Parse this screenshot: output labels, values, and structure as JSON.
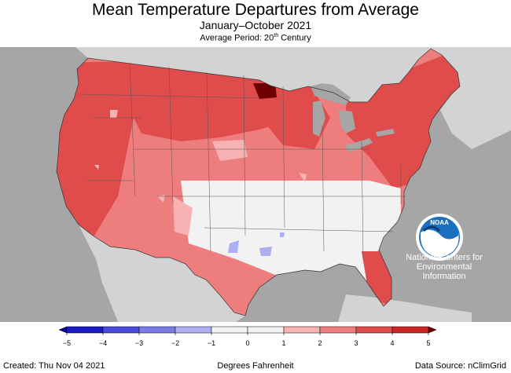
{
  "title": "Mean Temperature Departures from Average",
  "subtitle": "January–October 2021",
  "period": {
    "prefix": "Average Period: 20",
    "sup": "th",
    "suffix": " Century"
  },
  "organization": {
    "logo_text": "NOAA",
    "line1": "National Centers for",
    "line2": "Environmental",
    "line3": "Information"
  },
  "legend": {
    "ticks": [
      "−5",
      "−4",
      "−3",
      "−2",
      "−1",
      "0",
      "1",
      "2",
      "3",
      "4",
      "5"
    ],
    "colors": [
      "#1b1bc4",
      "#4a4ad8",
      "#7b7be6",
      "#aeaef2",
      "#f2f2f2",
      "#f2f2f2",
      "#f7b3b3",
      "#ee7e7e",
      "#e04c4c",
      "#c82626"
    ],
    "low_arrow_color": "#0a0aa0",
    "high_arrow_color": "#6e0000"
  },
  "units": "Degrees Fahrenheit",
  "created": "Created: Thu Nov 04 2021",
  "source": "Data Source: nClimGrid",
  "colors": {
    "background": "#a6a6a6",
    "land_outside": "#d3d3d3",
    "lakes": "#a6a6a6",
    "near_zero": "#f2f2f2",
    "plus1_2": "#f7b3b3",
    "plus2_3": "#ee7e7e",
    "plus3_4": "#e04c4c",
    "plus4_5": "#c82626",
    "above_5": "#6e0000",
    "minus1_2": "#aeaef2"
  }
}
